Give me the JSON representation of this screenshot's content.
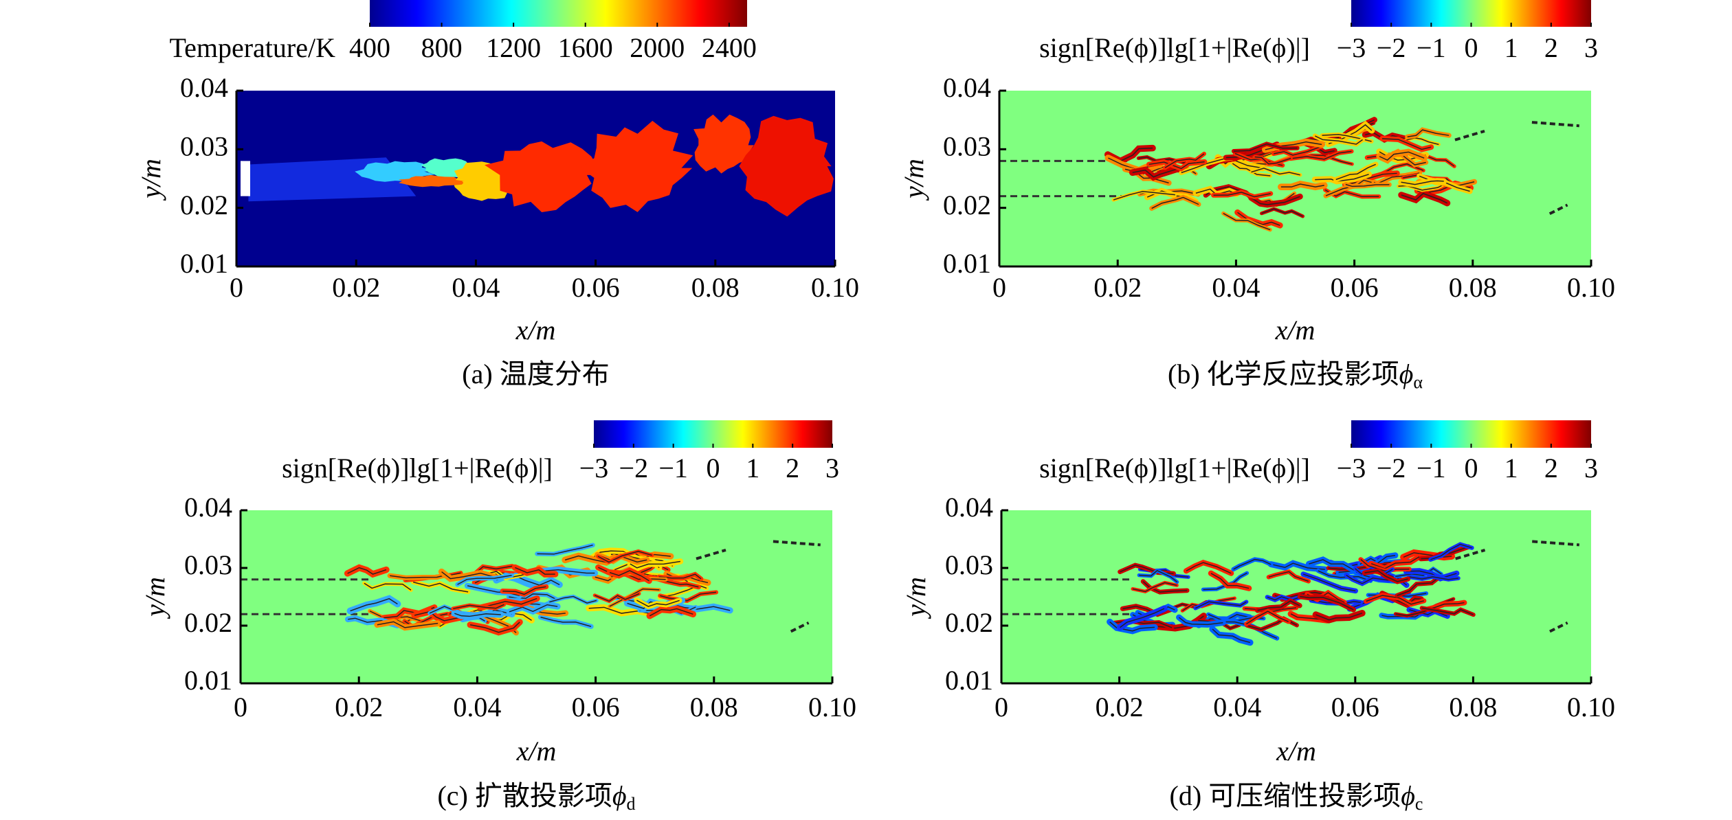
{
  "chart_data": [
    {
      "type": "heatmap",
      "title": "(a) 温度分布",
      "colorbar_label": "Temperature/K",
      "colormap": "jet",
      "clim": [
        400,
        2500
      ],
      "cticks": [
        400,
        800,
        1200,
        1600,
        2000,
        2400
      ],
      "xlabel": "x/m",
      "ylabel": "y/m",
      "xlim": [
        0,
        0.1
      ],
      "ylim": [
        0.01,
        0.04
      ],
      "xticks": [
        0,
        0.02,
        0.04,
        0.06,
        0.08,
        {
          "value": 0.1,
          "label": "0.10"
        }
      ],
      "yticks": [
        0.01,
        0.02,
        0.03,
        0.04
      ]
    },
    {
      "type": "heatmap",
      "title": "(b) 化学反应投影项",
      "symbol": "ϕ",
      "subscript": "α",
      "colorbar_label": "sign[Re(ϕ)]lg[1+|Re(ϕ)|]",
      "colormap": "jet",
      "clim": [
        -3,
        3
      ],
      "cticks": [
        {
          "value": -3,
          "label": "−3"
        },
        {
          "value": -2,
          "label": "−2"
        },
        {
          "value": -1,
          "label": "−1"
        },
        0,
        1,
        2,
        3
      ],
      "xlabel": "x/m",
      "ylabel": "y/m",
      "xlim": [
        0,
        0.1
      ],
      "ylim": [
        0.01,
        0.04
      ],
      "xticks": [
        0,
        0.02,
        0.04,
        0.06,
        0.08,
        {
          "value": 0.1,
          "label": "0.10"
        }
      ],
      "yticks": [
        0.01,
        0.02,
        0.03,
        0.04
      ]
    },
    {
      "type": "heatmap",
      "title": "(c) 扩散投影项",
      "symbol": "ϕ",
      "subscript": "d",
      "colorbar_label": "sign[Re(ϕ)]lg[1+|Re(ϕ)|]",
      "colormap": "jet",
      "clim": [
        -3,
        3
      ],
      "cticks": [
        {
          "value": -3,
          "label": "−3"
        },
        {
          "value": -2,
          "label": "−2"
        },
        {
          "value": -1,
          "label": "−1"
        },
        0,
        1,
        2,
        3
      ],
      "xlabel": "x/m",
      "ylabel": "y/m",
      "xlim": [
        0,
        0.1
      ],
      "ylim": [
        0.01,
        0.04
      ],
      "xticks": [
        0,
        0.02,
        0.04,
        0.06,
        0.08,
        {
          "value": 0.1,
          "label": "0.10"
        }
      ],
      "yticks": [
        0.01,
        0.02,
        0.03,
        0.04
      ]
    },
    {
      "type": "heatmap",
      "title": "(d) 可压缩性投影项",
      "symbol": "ϕ",
      "subscript": "c",
      "colorbar_label": "sign[Re(ϕ)]lg[1+|Re(ϕ)|]",
      "colormap": "jet",
      "clim": [
        -3,
        3
      ],
      "cticks": [
        {
          "value": -3,
          "label": "−3"
        },
        {
          "value": -2,
          "label": "−2"
        },
        {
          "value": -1,
          "label": "−1"
        },
        0,
        1,
        2,
        3
      ],
      "xlabel": "x/m",
      "ylabel": "y/m",
      "xlim": [
        0,
        0.1
      ],
      "ylim": [
        0.01,
        0.04
      ],
      "xticks": [
        0,
        0.02,
        0.04,
        0.06,
        0.08,
        {
          "value": 0.1,
          "label": "0.10"
        }
      ],
      "yticks": [
        0.01,
        0.02,
        0.03,
        0.04
      ]
    }
  ]
}
